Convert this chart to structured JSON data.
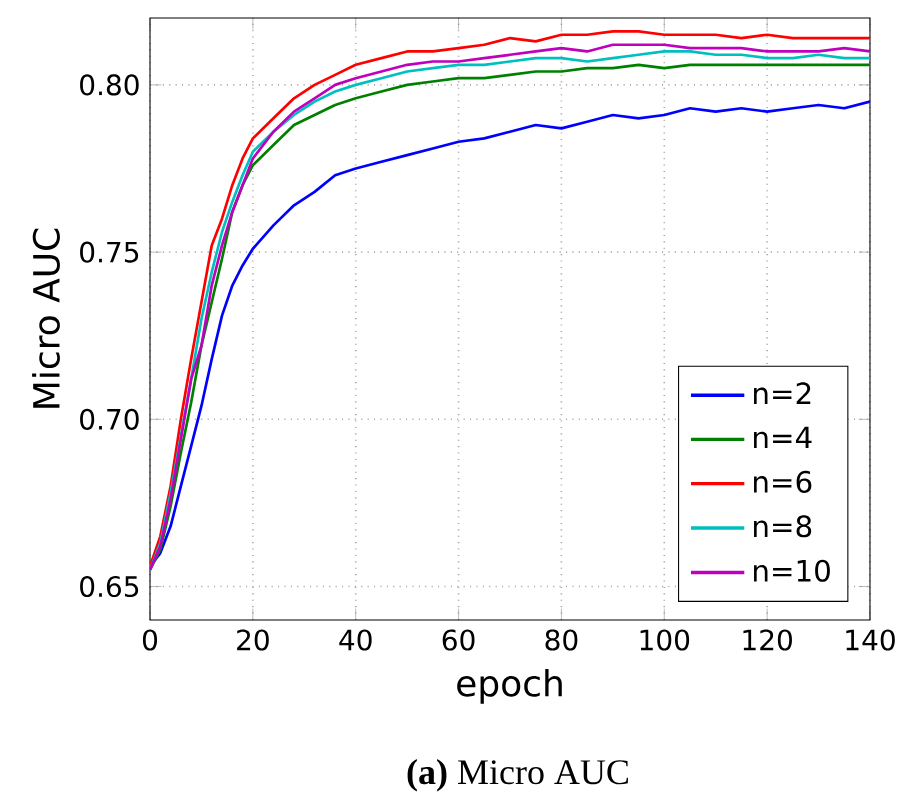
{
  "chart_data": {
    "type": "line",
    "xlabel": "epoch",
    "ylabel": "Micro AUC",
    "annotations": [
      "**(a)** Micro AUC"
    ],
    "x": [
      0,
      2,
      4,
      6,
      8,
      10,
      12,
      14,
      16,
      18,
      20,
      24,
      28,
      32,
      36,
      40,
      45,
      50,
      55,
      60,
      65,
      70,
      75,
      80,
      85,
      90,
      95,
      100,
      105,
      110,
      115,
      120,
      125,
      130,
      135,
      140
    ],
    "series": [
      {
        "name": "n=2",
        "color": "#0000ff",
        "values": [
          0.656,
          0.66,
          0.668,
          0.68,
          0.692,
          0.704,
          0.718,
          0.731,
          0.74,
          0.746,
          0.751,
          0.758,
          0.764,
          0.768,
          0.773,
          0.775,
          0.777,
          0.779,
          0.781,
          0.783,
          0.784,
          0.786,
          0.788,
          0.787,
          0.789,
          0.791,
          0.79,
          0.791,
          0.793,
          0.792,
          0.793,
          0.792,
          0.793,
          0.794,
          0.793,
          0.795
        ]
      },
      {
        "name": "n=4",
        "color": "#008000",
        "values": [
          0.655,
          0.661,
          0.674,
          0.69,
          0.705,
          0.722,
          0.735,
          0.748,
          0.762,
          0.77,
          0.776,
          0.782,
          0.788,
          0.791,
          0.794,
          0.796,
          0.798,
          0.8,
          0.801,
          0.802,
          0.802,
          0.803,
          0.804,
          0.804,
          0.805,
          0.805,
          0.806,
          0.805,
          0.806,
          0.806,
          0.806,
          0.806,
          0.806,
          0.806,
          0.806,
          0.806
        ]
      },
      {
        "name": "n=6",
        "color": "#ff0000",
        "values": [
          0.656,
          0.665,
          0.68,
          0.7,
          0.718,
          0.735,
          0.752,
          0.76,
          0.77,
          0.778,
          0.784,
          0.79,
          0.796,
          0.8,
          0.803,
          0.806,
          0.808,
          0.81,
          0.81,
          0.811,
          0.812,
          0.814,
          0.813,
          0.815,
          0.815,
          0.816,
          0.816,
          0.815,
          0.815,
          0.815,
          0.814,
          0.815,
          0.814,
          0.814,
          0.814,
          0.814
        ]
      },
      {
        "name": "n=8",
        "color": "#00bfbf",
        "values": [
          0.655,
          0.663,
          0.678,
          0.695,
          0.712,
          0.73,
          0.744,
          0.756,
          0.765,
          0.773,
          0.78,
          0.786,
          0.791,
          0.795,
          0.798,
          0.8,
          0.802,
          0.804,
          0.805,
          0.806,
          0.806,
          0.807,
          0.808,
          0.808,
          0.807,
          0.808,
          0.809,
          0.81,
          0.81,
          0.809,
          0.809,
          0.808,
          0.808,
          0.809,
          0.808,
          0.808
        ]
      },
      {
        "name": "n=10",
        "color": "#bf00bf",
        "values": [
          0.655,
          0.662,
          0.676,
          0.694,
          0.712,
          0.722,
          0.74,
          0.752,
          0.762,
          0.77,
          0.778,
          0.786,
          0.792,
          0.796,
          0.8,
          0.802,
          0.804,
          0.806,
          0.807,
          0.807,
          0.808,
          0.809,
          0.81,
          0.811,
          0.81,
          0.812,
          0.812,
          0.812,
          0.811,
          0.811,
          0.811,
          0.81,
          0.81,
          0.81,
          0.811,
          0.81
        ]
      }
    ],
    "xlim": [
      0,
      140
    ],
    "ylim": [
      0.64,
      0.82
    ],
    "xticks": [
      0,
      20,
      40,
      60,
      80,
      100,
      120,
      140
    ],
    "yticks": [
      {
        "value": 0.65,
        "label": "0.65"
      },
      {
        "value": 0.7,
        "label": "0.70"
      },
      {
        "value": 0.75,
        "label": "0.75"
      },
      {
        "value": 0.8,
        "label": "0.80"
      }
    ],
    "grid": true,
    "legend": "bottom right",
    "marker": "none",
    "line_style": "solid"
  }
}
